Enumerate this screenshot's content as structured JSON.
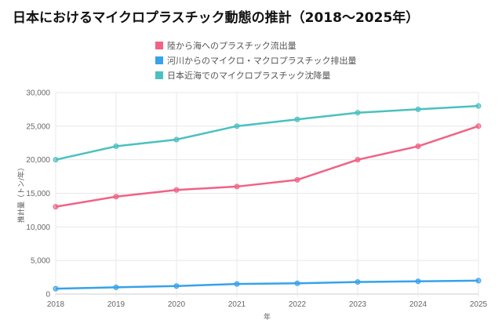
{
  "chart_data": {
    "type": "line",
    "title": "日本におけるマイクロプラスチック動態の推計（2018〜2025年）",
    "xlabel": "年",
    "ylabel": "推計量（トン/年）",
    "x": [
      "2018",
      "2019",
      "2020",
      "2021",
      "2022",
      "2023",
      "2024",
      "2025"
    ],
    "ylim": [
      0,
      30000
    ],
    "yticks": [
      "0",
      "5,000",
      "10,000",
      "15,000",
      "20,000",
      "25,000",
      "30,000"
    ],
    "grid": true,
    "legend_position": "top",
    "series": [
      {
        "name": "陸から海へのプラスチック流出量",
        "color": "#f06384",
        "values": [
          13000,
          14500,
          15500,
          16000,
          17000,
          20000,
          22000,
          25000
        ]
      },
      {
        "name": "河川からのマイクロ・マクロプラスチック排出量",
        "color": "#36a2eb",
        "values": [
          800,
          1000,
          1200,
          1500,
          1600,
          1800,
          1900,
          2000
        ]
      },
      {
        "name": "日本近海でのマイクロプラスチック沈降量",
        "color": "#4bc0c0",
        "values": [
          20000,
          22000,
          23000,
          25000,
          26000,
          27000,
          27500,
          28000
        ]
      }
    ]
  }
}
